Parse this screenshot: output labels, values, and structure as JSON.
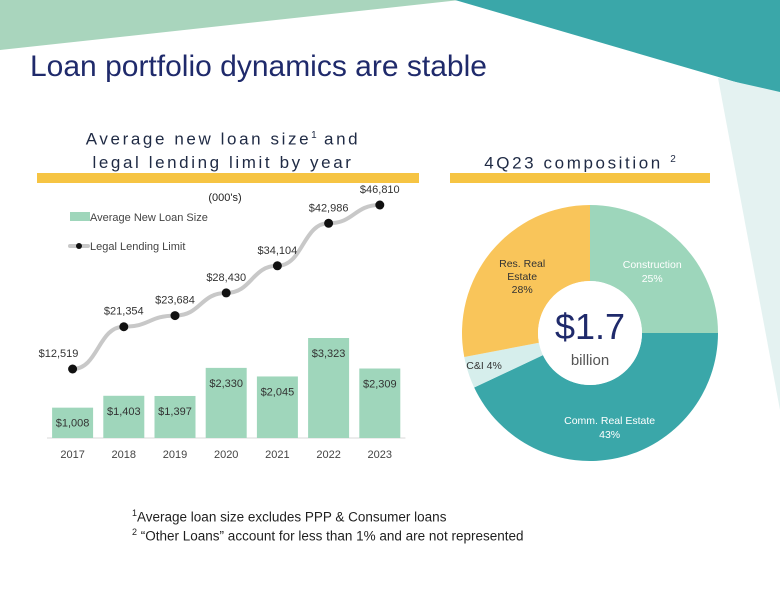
{
  "title": "Loan portfolio dynamics are stable",
  "left_panel": {
    "title_line1": "Average new loan size",
    "title_sup": "1",
    "title_line1_end": " and",
    "title_line2": "legal lending limit by year",
    "units_label": "(000's)"
  },
  "right_panel": {
    "title": "4Q23 composition",
    "title_sup": "2",
    "center_value": "$1.7",
    "center_unit": "billion"
  },
  "footnotes": [
    {
      "mark": "1",
      "text": "Average loan size excludes PPP & Consumer loans"
    },
    {
      "mark": "2",
      "text": " “Other Loans” account for less than 1% and are not represented"
    }
  ],
  "colors": {
    "title": "#1f2a6b",
    "bar": "#9fd6bb",
    "line": "#c8c8c8",
    "marker": "#111111",
    "accent_yellow": "#f6c443",
    "teal": "#3aa7a9",
    "mint": "#9dd6bb",
    "light_teal": "#d6eeec"
  },
  "chart_data": [
    {
      "type": "bar",
      "categories": [
        "2017",
        "2018",
        "2019",
        "2020",
        "2021",
        "2022",
        "2023"
      ],
      "series": [
        {
          "name": "Average New Loan Size",
          "type": "bar",
          "values": [
            1008,
            1403,
            1397,
            2330,
            2045,
            3323,
            2309
          ],
          "labels": [
            "$1,008",
            "$1,403",
            "$1,397",
            "$2,330",
            "$2,045",
            "$3,323",
            "$2,309"
          ]
        },
        {
          "name": "Legal Lending Limit",
          "type": "line",
          "values": [
            12519,
            21354,
            23684,
            28430,
            34104,
            42986,
            46810
          ],
          "labels": [
            "$12,519",
            "$21,354",
            "$23,684",
            "$28,430",
            "$34,104",
            "$42,986",
            "$46,810"
          ]
        }
      ],
      "legend": "top-left",
      "grid": false
    },
    {
      "type": "pie",
      "donut": true,
      "slices": [
        {
          "label": "Construction",
          "value": 25,
          "pct_label": "25%",
          "color": "#9dd6bb"
        },
        {
          "label": "Comm. Real Estate",
          "value": 43,
          "pct_label": "43%",
          "color": "#3aa7a9"
        },
        {
          "label": "C&I",
          "value": 4,
          "pct_label": "4%",
          "color": "#d6eeec"
        },
        {
          "label": "Res. Real Estate",
          "value": 28,
          "pct_label": "28%",
          "color": "#f9c55a"
        }
      ]
    }
  ]
}
